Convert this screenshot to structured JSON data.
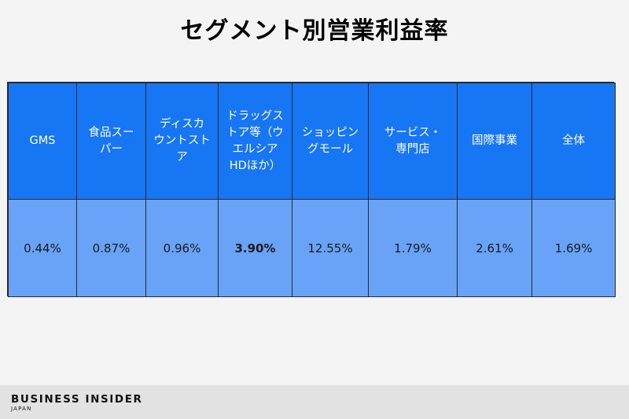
{
  "title": "セグメント別営業利益率",
  "table": {
    "headers": [
      "GMS",
      "食品スー\nパー",
      "ディスカ\nウントスト\nア",
      "ドラッグス\nトア等（ウ\nエルシア\nHDほか）",
      "ショッピン\nグモール",
      "サービス・\n専門店",
      "国際事業",
      "全体"
    ],
    "values": [
      "0.44%",
      "0.87%",
      "0.96%",
      "3.90%",
      "12.55%",
      "1.79%",
      "2.61%",
      "1.69%"
    ]
  },
  "colors": {
    "header_bg": "#1776f4",
    "value_bg": "#68a3f8",
    "page_bg": "#f4f4f4",
    "footer_bg": "#e2e2e2"
  },
  "logo": {
    "name": "BUSINESS INSIDER",
    "region": "JAPAN"
  }
}
